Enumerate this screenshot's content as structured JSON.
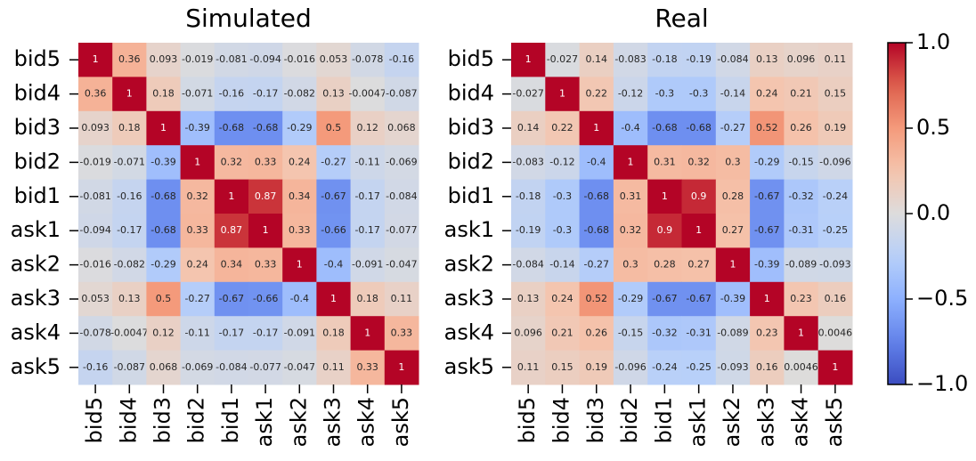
{
  "chart_data": [
    {
      "type": "heatmap",
      "title": "Simulated",
      "x_categories": [
        "bid5",
        "bid4",
        "bid3",
        "bid2",
        "bid1",
        "ask1",
        "ask2",
        "ask3",
        "ask4",
        "ask5"
      ],
      "y_categories": [
        "bid5",
        "bid4",
        "bid3",
        "bid2",
        "bid1",
        "ask1",
        "ask2",
        "ask3",
        "ask4",
        "ask5"
      ],
      "values": [
        [
          1,
          0.36,
          0.093,
          -0.019,
          -0.081,
          -0.094,
          -0.016,
          0.053,
          -0.078,
          -0.16
        ],
        [
          0.36,
          1,
          0.18,
          -0.071,
          -0.16,
          -0.17,
          -0.082,
          0.13,
          -0.0047,
          -0.087
        ],
        [
          0.093,
          0.18,
          1,
          -0.39,
          -0.68,
          -0.68,
          -0.29,
          0.5,
          0.12,
          0.068
        ],
        [
          -0.019,
          -0.071,
          -0.39,
          1,
          0.32,
          0.33,
          0.24,
          -0.27,
          -0.11,
          -0.069
        ],
        [
          -0.081,
          -0.16,
          -0.68,
          0.32,
          1,
          0.87,
          0.34,
          -0.67,
          -0.17,
          -0.084
        ],
        [
          -0.094,
          -0.17,
          -0.68,
          0.33,
          0.87,
          1,
          0.33,
          -0.66,
          -0.17,
          -0.077
        ],
        [
          -0.016,
          -0.082,
          -0.29,
          0.24,
          0.34,
          0.33,
          1,
          -0.4,
          -0.091,
          -0.047
        ],
        [
          0.053,
          0.13,
          0.5,
          -0.27,
          -0.67,
          -0.66,
          -0.4,
          1,
          0.18,
          0.11
        ],
        [
          -0.078,
          -0.0047,
          0.12,
          -0.11,
          -0.17,
          -0.17,
          -0.091,
          0.18,
          1,
          0.33
        ],
        [
          -0.16,
          -0.087,
          0.068,
          -0.069,
          -0.084,
          -0.077,
          -0.047,
          0.11,
          0.33,
          1
        ]
      ]
    },
    {
      "type": "heatmap",
      "title": "Real",
      "x_categories": [
        "bid5",
        "bid4",
        "bid3",
        "bid2",
        "bid1",
        "ask1",
        "ask2",
        "ask3",
        "ask4",
        "ask5"
      ],
      "y_categories": [
        "bid5",
        "bid4",
        "bid3",
        "bid2",
        "bid1",
        "ask1",
        "ask2",
        "ask3",
        "ask4",
        "ask5"
      ],
      "values": [
        [
          1,
          -0.027,
          0.14,
          -0.083,
          -0.18,
          -0.19,
          -0.084,
          0.13,
          0.096,
          0.11
        ],
        [
          -0.027,
          1,
          0.22,
          -0.12,
          -0.3,
          -0.3,
          -0.14,
          0.24,
          0.21,
          0.15
        ],
        [
          0.14,
          0.22,
          1,
          -0.4,
          -0.68,
          -0.68,
          -0.27,
          0.52,
          0.26,
          0.19
        ],
        [
          -0.083,
          -0.12,
          -0.4,
          1,
          0.31,
          0.32,
          0.3,
          -0.29,
          -0.15,
          -0.096
        ],
        [
          -0.18,
          -0.3,
          -0.68,
          0.31,
          1,
          0.9,
          0.28,
          -0.67,
          -0.32,
          -0.24
        ],
        [
          -0.19,
          -0.3,
          -0.68,
          0.32,
          0.9,
          1,
          0.27,
          -0.67,
          -0.31,
          -0.25
        ],
        [
          -0.084,
          -0.14,
          -0.27,
          0.3,
          0.28,
          0.27,
          1,
          -0.39,
          -0.089,
          -0.093
        ],
        [
          0.13,
          0.24,
          0.52,
          -0.29,
          -0.67,
          -0.67,
          -0.39,
          1,
          0.23,
          0.16
        ],
        [
          0.096,
          0.21,
          0.26,
          -0.15,
          -0.32,
          -0.31,
          -0.089,
          0.23,
          1,
          0.0046
        ],
        [
          0.11,
          0.15,
          0.19,
          -0.096,
          -0.24,
          -0.25,
          -0.093,
          0.16,
          0.0046,
          1
        ]
      ]
    }
  ],
  "colorbar": {
    "colormap": "coolwarm",
    "range": [
      -1,
      1
    ],
    "ticks": [
      {
        "value": 1,
        "label": "1.0"
      },
      {
        "value": 0.5,
        "label": "0.5"
      },
      {
        "value": 0,
        "label": "0.0"
      },
      {
        "value": -0.5,
        "label": "−0.5"
      },
      {
        "value": -1,
        "label": "−1.0"
      }
    ]
  }
}
